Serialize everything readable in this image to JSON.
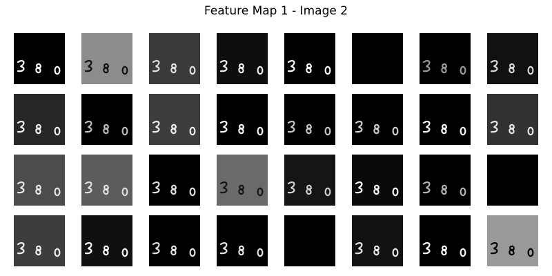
{
  "title": "Feature Map 1 - Image 2",
  "tiles": [
    {
      "bg": "#000000",
      "ink": "#ffffff"
    },
    {
      "bg": "#8c8c8c",
      "ink": "#101010"
    },
    {
      "bg": "#3a3a3a",
      "ink": "#e0e0e0"
    },
    {
      "bg": "#0e0e0e",
      "ink": "#f0f0f0"
    },
    {
      "bg": "#000000",
      "ink": "#ffffff"
    },
    {
      "bg": "#000000",
      "ink": "#000000"
    },
    {
      "bg": "#000000",
      "ink": "#9a9a9a"
    },
    {
      "bg": "#111111",
      "ink": "#d8d8d8"
    },
    {
      "bg": "#272727",
      "ink": "#f5f5f5"
    },
    {
      "bg": "#000000",
      "ink": "#bdbdbd"
    },
    {
      "bg": "#3d3d3d",
      "ink": "#f0f0f0"
    },
    {
      "bg": "#000000",
      "ink": "#ffffff"
    },
    {
      "bg": "#000000",
      "ink": "#c8c8c8"
    },
    {
      "bg": "#000000",
      "ink": "#d0d0d0"
    },
    {
      "bg": "#000000",
      "ink": "#ffffff"
    },
    {
      "bg": "#323232",
      "ink": "#e8e8e8"
    },
    {
      "bg": "#4c4c4c",
      "ink": "#e8e8e8"
    },
    {
      "bg": "#5c5c5c",
      "ink": "#e0e0e0"
    },
    {
      "bg": "#000000",
      "ink": "#e0e0e0"
    },
    {
      "bg": "#6a6a6a",
      "ink": "#151515"
    },
    {
      "bg": "#151515",
      "ink": "#d0d0d0"
    },
    {
      "bg": "#0a0a0a",
      "ink": "#ffffff"
    },
    {
      "bg": "#000000",
      "ink": "#b5b5b5"
    },
    {
      "bg": "#000000",
      "ink": "#000000"
    },
    {
      "bg": "#3d3d3d",
      "ink": "#f0f0f0"
    },
    {
      "bg": "#101010",
      "ink": "#ffffff"
    },
    {
      "bg": "#000000",
      "ink": "#e0e0e0"
    },
    {
      "bg": "#000000",
      "ink": "#e6e6e6"
    },
    {
      "bg": "#000000",
      "ink": "#000000"
    },
    {
      "bg": "#121212",
      "ink": "#e8e8e8"
    },
    {
      "bg": "#000000",
      "ink": "#ffffff"
    },
    {
      "bg": "#999999",
      "ink": "#000000"
    }
  ]
}
